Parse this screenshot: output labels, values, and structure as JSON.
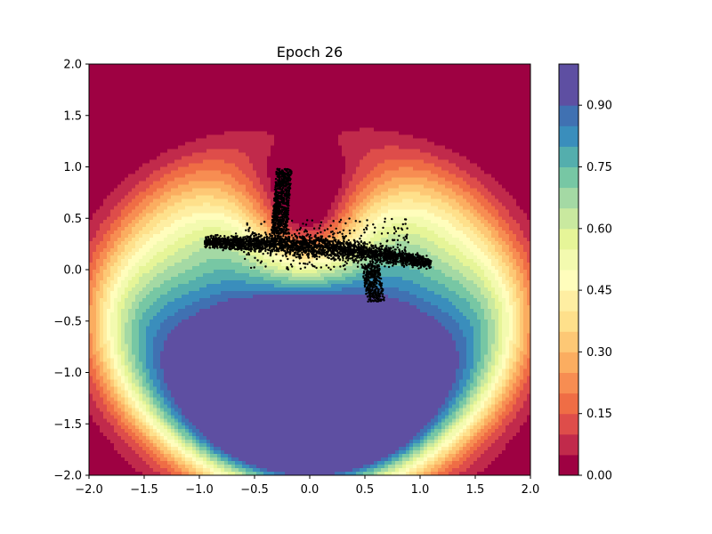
{
  "chart_data": {
    "type": "contourf",
    "title": "Epoch 26",
    "xlabel": "",
    "ylabel": "",
    "xlim": [
      -2.0,
      2.0
    ],
    "ylim": [
      -2.0,
      2.0
    ],
    "x_ticks": [
      "−2.0",
      "−1.5",
      "−1.0",
      "−0.5",
      "0.0",
      "0.5",
      "1.0",
      "1.5",
      "2.0"
    ],
    "y_ticks": [
      "−2.0",
      "−1.5",
      "−1.0",
      "−0.5",
      "0.0",
      "0.5",
      "1.0",
      "1.5",
      "2.0"
    ],
    "grid": false,
    "colormap": "Spectral",
    "contour_levels": [
      0.0,
      0.05,
      0.1,
      0.15,
      0.2,
      0.25,
      0.3,
      0.35,
      0.4,
      0.45,
      0.5,
      0.55,
      0.6,
      0.65,
      0.7,
      0.75,
      0.8,
      0.85,
      0.9,
      0.95,
      1.0
    ],
    "colors": [
      "#9e0142",
      "#c12a4b",
      "#de4d4a",
      "#ef6d45",
      "#f78d52",
      "#fbad60",
      "#fdc875",
      "#fee08b",
      "#feeea2",
      "#fffdbc",
      "#f3faaf",
      "#e6f598",
      "#c9e99f",
      "#a4d9a4",
      "#77c7a4",
      "#54aead",
      "#3a8ebc",
      "#4071b2",
      "#5e4fa2",
      "#5e4fa2"
    ],
    "colorbar": {
      "range": [
        0.0,
        1.0
      ],
      "tick_values": [
        0.0,
        0.15,
        0.3,
        0.45,
        0.6,
        0.75,
        0.9
      ],
      "tick_labels": [
        "0.00",
        "0.15",
        "0.30",
        "0.45",
        "0.60",
        "0.75",
        "0.90"
      ]
    },
    "scatter": {
      "color": "#000000",
      "description_points": {
        "band_left_x": -0.95,
        "band_right_x": 1.1,
        "band_center_y_left": 0.27,
        "band_center_y_right": 0.07,
        "upper_arm_top": [
          -0.27,
          1.05
        ],
        "lower_tail_bottom": [
          0.57,
          -0.35
        ]
      }
    }
  }
}
